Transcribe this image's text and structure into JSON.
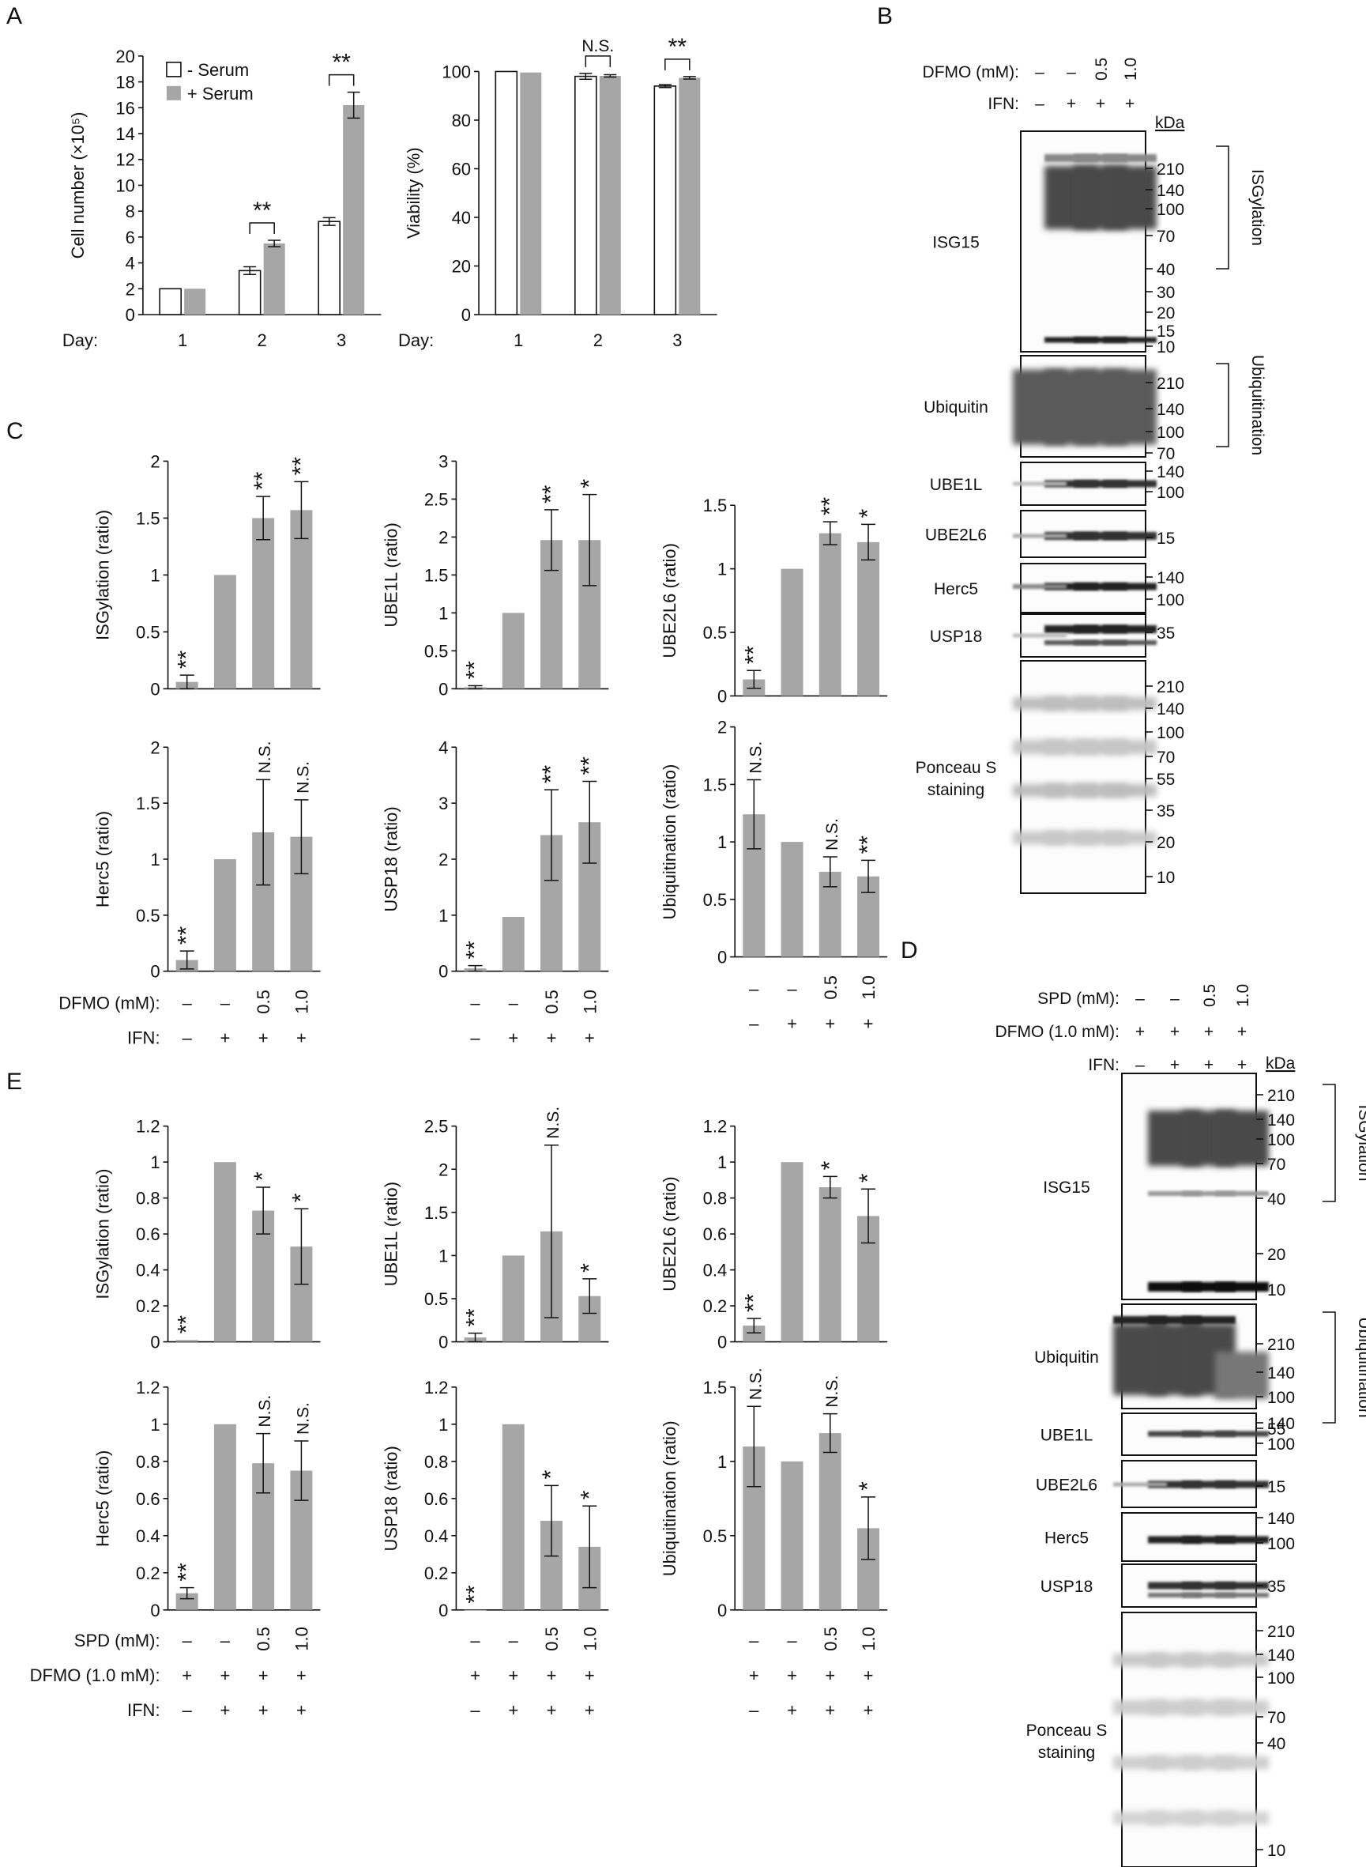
{
  "panels": {
    "A": "A",
    "B": "B",
    "C": "C",
    "D": "D",
    "E": "E"
  },
  "chart_data": [
    {
      "id": "A1",
      "panel": "A",
      "type": "bar",
      "ylabel": "Cell number (×10⁵)",
      "ylim": [
        0,
        20
      ],
      "yticks": [
        0,
        2,
        4,
        6,
        8,
        10,
        12,
        14,
        16,
        18,
        20
      ],
      "categories": [
        "1",
        "2",
        "3"
      ],
      "xprefix": "Day:",
      "series": [
        {
          "name": "- Serum",
          "values": [
            2.0,
            3.4,
            7.2
          ],
          "errors": [
            0.0,
            0.3,
            0.3
          ],
          "color": "#ffffff"
        },
        {
          "name": "+ Serum",
          "values": [
            2.0,
            5.5,
            16.2
          ],
          "errors": [
            0.0,
            0.25,
            1.0
          ],
          "color": "#a6a6a6"
        }
      ],
      "legend": "top-left",
      "brackets": [
        {
          "category": 1,
          "text": "**"
        },
        {
          "category": 2,
          "text": "**"
        }
      ]
    },
    {
      "id": "A2",
      "panel": "A",
      "type": "bar",
      "ylabel": "Viability (%)",
      "ylim": [
        0,
        100
      ],
      "yticks": [
        0,
        20,
        40,
        60,
        80,
        100
      ],
      "categories": [
        "1",
        "2",
        "3"
      ],
      "xprefix": "Day:",
      "series": [
        {
          "name": "- Serum",
          "values": [
            100,
            98,
            94
          ],
          "errors": [
            0,
            1.2,
            0.6
          ],
          "color": "#ffffff"
        },
        {
          "name": "+ Serum",
          "values": [
            99.6,
            98.2,
            97.4
          ],
          "errors": [
            0,
            0.5,
            0.5
          ],
          "color": "#a6a6a6"
        }
      ],
      "brackets": [
        {
          "category": 1,
          "text": "N.S."
        },
        {
          "category": 2,
          "text": "**"
        }
      ]
    },
    {
      "id": "C1",
      "panel": "C",
      "type": "bar",
      "ylabel": "ISGylation (ratio)",
      "ylim": [
        0,
        2
      ],
      "yticks": [
        "0",
        "0.5",
        "1",
        "1.5",
        "2"
      ],
      "values": [
        0.06,
        1.0,
        1.5,
        1.57
      ],
      "errors": [
        0.06,
        0,
        0.19,
        0.25
      ],
      "sig": [
        "**",
        "",
        "**",
        "**"
      ]
    },
    {
      "id": "C2",
      "panel": "C",
      "type": "bar",
      "ylabel": "UBE1L (ratio)",
      "ylim": [
        0,
        3
      ],
      "yticks": [
        "0",
        "0.5",
        "1",
        "1.5",
        "2",
        "2.5",
        "3"
      ],
      "values": [
        0.02,
        1.0,
        1.96,
        1.96
      ],
      "errors": [
        0.02,
        0,
        0.4,
        0.6
      ],
      "sig": [
        "**",
        "",
        "**",
        "*"
      ]
    },
    {
      "id": "C3",
      "panel": "C",
      "type": "bar",
      "ylabel": "UBE2L6 (ratio)",
      "ylim": [
        0,
        1.5
      ],
      "yticks": [
        "0",
        "0.5",
        "1",
        "1.5"
      ],
      "values": [
        0.13,
        1.0,
        1.28,
        1.21
      ],
      "errors": [
        0.07,
        0,
        0.09,
        0.14
      ],
      "sig": [
        "**",
        "",
        "**",
        "*"
      ]
    },
    {
      "id": "C4",
      "panel": "C",
      "type": "bar",
      "ylabel": "Herc5 (ratio)",
      "ylim": [
        0,
        2
      ],
      "yticks": [
        "0",
        "0.5",
        "1",
        "1.5",
        "2"
      ],
      "values": [
        0.1,
        1.0,
        1.24,
        1.2
      ],
      "errors": [
        0.08,
        0,
        0.47,
        0.33
      ],
      "sig": [
        "**",
        "",
        "N.S.",
        "N.S."
      ]
    },
    {
      "id": "C5",
      "panel": "C",
      "type": "bar",
      "ylabel": "USP18 (ratio)",
      "ylim": [
        0,
        4
      ],
      "yticks": [
        "0",
        "1",
        "2",
        "3",
        "4"
      ],
      "values": [
        0.05,
        0.97,
        2.43,
        2.66
      ],
      "errors": [
        0.05,
        0,
        0.81,
        0.73
      ],
      "sig": [
        "**",
        "",
        "**",
        "**"
      ]
    },
    {
      "id": "C6",
      "panel": "C",
      "type": "bar",
      "ylabel": "Ubiquitination (ratio)",
      "ylim": [
        0,
        2
      ],
      "yticks": [
        "0",
        "0.5",
        "1",
        "1.5",
        "2"
      ],
      "values": [
        1.24,
        1.0,
        0.74,
        0.7
      ],
      "errors": [
        0.3,
        0,
        0.13,
        0.14
      ],
      "sig": [
        "N.S.",
        "",
        "N.S.",
        "**"
      ]
    },
    {
      "id": "E1",
      "panel": "E",
      "type": "bar",
      "ylabel": "ISGylation (ratio)",
      "ylim": [
        0,
        1.2
      ],
      "yticks": [
        "0",
        "0.2",
        "0.4",
        "0.6",
        "0.8",
        "1",
        "1.2"
      ],
      "values": [
        0.01,
        1.0,
        0.73,
        0.53
      ],
      "errors": [
        0.0,
        0,
        0.13,
        0.21
      ],
      "sig": [
        "**",
        "",
        "*",
        "*"
      ]
    },
    {
      "id": "E2",
      "panel": "E",
      "type": "bar",
      "ylabel": "UBE1L (ratio)",
      "ylim": [
        0,
        2.5
      ],
      "yticks": [
        "0",
        "0.5",
        "1",
        "1.5",
        "2",
        "2.5"
      ],
      "values": [
        0.05,
        1.0,
        1.28,
        0.53
      ],
      "errors": [
        0.05,
        0,
        1.0,
        0.2
      ],
      "sig": [
        "**",
        "",
        "N.S.",
        "*"
      ]
    },
    {
      "id": "E3",
      "panel": "E",
      "type": "bar",
      "ylabel": "UBE2L6 (ratio)",
      "ylim": [
        0,
        1.2
      ],
      "yticks": [
        "0",
        "0.2",
        "0.4",
        "0.6",
        "0.8",
        "1",
        "1.2"
      ],
      "values": [
        0.09,
        1.0,
        0.86,
        0.7
      ],
      "errors": [
        0.04,
        0,
        0.06,
        0.15
      ],
      "sig": [
        "**",
        "",
        "*",
        "*"
      ]
    },
    {
      "id": "E4",
      "panel": "E",
      "type": "bar",
      "ylabel": "Herc5 (ratio)",
      "ylim": [
        0,
        1.2
      ],
      "yticks": [
        "0",
        "0.2",
        "0.4",
        "0.6",
        "0.8",
        "1",
        "1.2"
      ],
      "values": [
        0.09,
        1.0,
        0.79,
        0.75
      ],
      "errors": [
        0.03,
        0,
        0.16,
        0.16
      ],
      "sig": [
        "**",
        "",
        "N.S.",
        "N.S."
      ]
    },
    {
      "id": "E5",
      "panel": "E",
      "type": "bar",
      "ylabel": "USP18 (ratio)",
      "ylim": [
        0,
        1.2
      ],
      "yticks": [
        "0",
        "0.2",
        "0.4",
        "0.6",
        "0.8",
        "1",
        "1.2"
      ],
      "values": [
        0.0,
        1.0,
        0.48,
        0.34
      ],
      "errors": [
        0,
        0,
        0.19,
        0.22
      ],
      "sig": [
        "**",
        "",
        "*",
        "*"
      ]
    },
    {
      "id": "E6",
      "panel": "E",
      "type": "bar",
      "ylabel": "Ubiquitination (ratio)",
      "ylim": [
        0,
        1.5
      ],
      "yticks": [
        "0",
        "0.5",
        "1",
        "1.5"
      ],
      "values": [
        1.1,
        1.0,
        1.19,
        0.55
      ],
      "errors": [
        0.27,
        0,
        0.13,
        0.21
      ],
      "sig": [
        "N.S.",
        "",
        "N.S.",
        "*"
      ]
    }
  ],
  "conditions_C": {
    "rows": [
      {
        "label": "DFMO  (mM):",
        "values": [
          "–",
          "–",
          "0.5",
          "1.0"
        ]
      },
      {
        "label": "IFN:",
        "values": [
          "–",
          "+",
          "+",
          "+"
        ]
      }
    ]
  },
  "conditions_E": {
    "rows": [
      {
        "label": "SPD  (mM):",
        "values": [
          "–",
          "–",
          "0.5",
          "1.0"
        ]
      },
      {
        "label": "DFMO  (1.0 mM):",
        "values": [
          "+",
          "+",
          "+",
          "+"
        ]
      },
      {
        "label": "IFN:",
        "values": [
          "–",
          "+",
          "+",
          "+"
        ]
      }
    ]
  },
  "blot_B": {
    "header": [
      {
        "label": "DFMO  (mM):",
        "values": [
          "–",
          "–",
          "0.5",
          "1.0"
        ]
      },
      {
        "label": "IFN:",
        "values": [
          "–",
          "+",
          "+",
          "+"
        ]
      }
    ],
    "kda_label": "kDa",
    "strips": [
      {
        "name": "ISG15",
        "markers": [
          "210",
          "140",
          "100",
          "70",
          "40",
          "30",
          "20",
          "15",
          "10"
        ]
      },
      {
        "name": "Ubiquitin",
        "markers": [
          "210",
          "140",
          "100",
          "70"
        ]
      },
      {
        "name": "UBE1L",
        "markers": [
          "140",
          "100"
        ]
      },
      {
        "name": "UBE2L6",
        "markers": [
          "15"
        ]
      },
      {
        "name": "Herc5",
        "markers": [
          "140",
          "100"
        ]
      },
      {
        "name": "USP18",
        "markers": [
          "35"
        ]
      },
      {
        "name": "Ponceau S\nstaining",
        "markers": [
          "210",
          "140",
          "100",
          "70",
          "55",
          "35",
          "20",
          "10"
        ]
      }
    ],
    "brackets": [
      "ISGylation",
      "Ubiquitination"
    ]
  },
  "blot_D": {
    "header": [
      {
        "label": "SPD  (mM):",
        "values": [
          "–",
          "–",
          "0.5",
          "1.0"
        ]
      },
      {
        "label": "DFMO  (1.0 mM):",
        "values": [
          "+",
          "+",
          "+",
          "+"
        ]
      },
      {
        "label": "IFN:",
        "values": [
          "–",
          "+",
          "+",
          "+"
        ]
      }
    ],
    "kda_label": "kDa",
    "strips": [
      {
        "name": "ISG15",
        "markers": [
          "210",
          "140",
          "100",
          "70",
          "40",
          "20",
          "10"
        ]
      },
      {
        "name": "Ubiquitin",
        "markers": [
          "210",
          "140",
          "100",
          "55"
        ]
      },
      {
        "name": "UBE1L",
        "markers": [
          "140",
          "100"
        ]
      },
      {
        "name": "UBE2L6",
        "markers": [
          "15"
        ]
      },
      {
        "name": "Herc5",
        "markers": [
          "140",
          "100"
        ]
      },
      {
        "name": "USP18",
        "markers": [
          "35"
        ]
      },
      {
        "name": "Ponceau S\nstaining",
        "markers": [
          "210",
          "140",
          "100",
          "70",
          "40",
          "10"
        ]
      }
    ],
    "brackets": [
      "ISGylation",
      "Ubiquitination"
    ]
  }
}
